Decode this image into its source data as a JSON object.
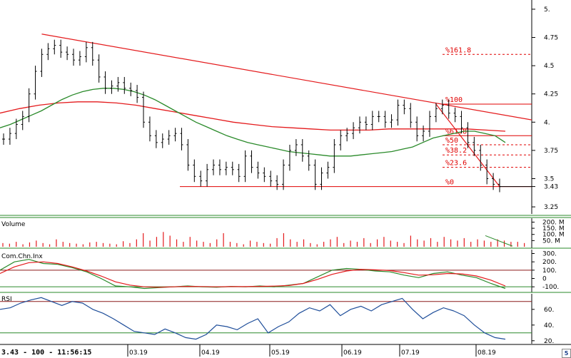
{
  "status_bar": {
    "text": "3.43 - 100 - 11:56:15"
  },
  "icons": {
    "corner": "app-logo-icon"
  },
  "colors": {
    "trend": "#e41a1c",
    "ma_short": "#2a8a2a",
    "ma_long": "#e41a1c",
    "price": "#000000",
    "rsi": "#1f4e9a",
    "fib": "#e00000",
    "grid": "#c04040"
  },
  "panels": {
    "volume": {
      "title": "Volume",
      "ticks": [
        "200. M",
        "150. M",
        "100. M",
        "50. M"
      ]
    },
    "cci": {
      "title": "Com.Chn.Inx",
      "ticks": [
        "300.",
        "200.",
        "100.",
        "0",
        "-100."
      ]
    },
    "rsi": {
      "title": "RSI",
      "ticks": [
        "60.",
        "40.",
        "20."
      ]
    }
  },
  "chart_data": {
    "type": "line",
    "price_axis_ticks": [
      "5.",
      "4.75",
      "4.5",
      "4.25",
      "4.",
      "3.75",
      "3.5",
      "3.43",
      "3.25"
    ],
    "ylim": [
      3.2,
      5.05
    ],
    "x_ticks": [
      "03.19",
      "04.19",
      "05.19",
      "06.19",
      "07.19",
      "08.19"
    ],
    "last_price": 3.43,
    "fibonacci": [
      {
        "label": "%161.8",
        "value": 4.6
      },
      {
        "label": "%100",
        "value": 4.16
      },
      {
        "label": "%61.8",
        "value": 3.88
      },
      {
        "label": "%50",
        "value": 3.8
      },
      {
        "label": "%38.2",
        "value": 3.71
      },
      {
        "label": "%23.6",
        "value": 3.6
      },
      {
        "label": "%0",
        "value": 3.43
      }
    ],
    "close": [
      3.85,
      3.9,
      3.98,
      4.05,
      4.25,
      4.45,
      4.6,
      4.65,
      4.68,
      4.62,
      4.6,
      4.55,
      4.58,
      4.66,
      4.55,
      4.4,
      4.3,
      4.32,
      4.35,
      4.3,
      4.28,
      4.22,
      4.0,
      3.88,
      3.82,
      3.85,
      3.88,
      3.9,
      3.8,
      3.62,
      3.52,
      3.48,
      3.58,
      3.62,
      3.58,
      3.6,
      3.58,
      3.52,
      3.7,
      3.6,
      3.55,
      3.52,
      3.48,
      3.45,
      3.62,
      3.75,
      3.8,
      3.7,
      3.62,
      3.45,
      3.55,
      3.6,
      3.8,
      3.88,
      3.9,
      3.95,
      4.0,
      3.98,
      4.05,
      4.05,
      4.0,
      4.02,
      4.15,
      4.12,
      4.0,
      3.88,
      3.92,
      4.05,
      4.12,
      4.15,
      4.08,
      4.05,
      3.95,
      3.82,
      3.75,
      3.62,
      3.5,
      3.45,
      3.43
    ],
    "ma_short": [
      3.95,
      3.98,
      4.02,
      4.06,
      4.1,
      4.15,
      4.2,
      4.24,
      4.27,
      4.29,
      4.3,
      4.3,
      4.29,
      4.27,
      4.24,
      4.2,
      4.15,
      4.1,
      4.05,
      4.0,
      3.96,
      3.92,
      3.88,
      3.85,
      3.82,
      3.8,
      3.78,
      3.76,
      3.74,
      3.73,
      3.72,
      3.71,
      3.7,
      3.7,
      3.7,
      3.71,
      3.72,
      3.73,
      3.74,
      3.76,
      3.78,
      3.82,
      3.86,
      3.88,
      3.9,
      3.92,
      3.92,
      3.9,
      3.88,
      3.82
    ],
    "ma_long": [
      4.08,
      4.12,
      4.15,
      4.17,
      4.18,
      4.18,
      4.17,
      4.15,
      4.12,
      4.09,
      4.06,
      4.03,
      4.0,
      3.98,
      3.96,
      3.95,
      3.94,
      3.93,
      3.93,
      3.93,
      3.94,
      3.94,
      3.94,
      3.94,
      3.94,
      3.93,
      3.92
    ],
    "volume": [
      30,
      25,
      40,
      20,
      35,
      50,
      30,
      20,
      60,
      40,
      30,
      25,
      20,
      35,
      40,
      30,
      25,
      20,
      45,
      30,
      60,
      110,
      50,
      80,
      120,
      90,
      60,
      40,
      80,
      50,
      40,
      30,
      60,
      110,
      40,
      30,
      20,
      50,
      40,
      30,
      25,
      70,
      110,
      60,
      40,
      60,
      30,
      20,
      40,
      60,
      80,
      30,
      50,
      40,
      70,
      30,
      60,
      80,
      50,
      40,
      30,
      90,
      60,
      50,
      70,
      40,
      80,
      60,
      50,
      70,
      40,
      60,
      50,
      40,
      60,
      50,
      40,
      40,
      30
    ],
    "cci": [
      100,
      200,
      230,
      180,
      170,
      130,
      80,
      0,
      -90,
      -100,
      -120,
      -110,
      -100,
      -90,
      -100,
      -105,
      -95,
      -100,
      -90,
      -100,
      -80,
      -60,
      20,
      100,
      120,
      110,
      90,
      80,
      40,
      10,
      60,
      80,
      40,
      10,
      -60,
      -120
    ],
    "cci_signal": [
      60,
      140,
      190,
      200,
      180,
      140,
      90,
      30,
      -40,
      -80,
      -100,
      -105,
      -100,
      -95,
      -97,
      -100,
      -98,
      -98,
      -95,
      -92,
      -85,
      -60,
      -10,
      50,
      90,
      110,
      105,
      95,
      70,
      40,
      45,
      60,
      55,
      30,
      -20,
      -90
    ],
    "rsi": [
      60,
      62,
      68,
      72,
      75,
      70,
      65,
      70,
      68,
      60,
      55,
      48,
      40,
      32,
      30,
      28,
      35,
      30,
      24,
      22,
      28,
      40,
      38,
      34,
      42,
      48,
      30,
      38,
      44,
      55,
      62,
      58,
      66,
      52,
      60,
      64,
      58,
      66,
      70,
      74,
      60,
      48,
      56,
      62,
      58,
      52,
      40,
      30,
      24,
      22
    ]
  }
}
